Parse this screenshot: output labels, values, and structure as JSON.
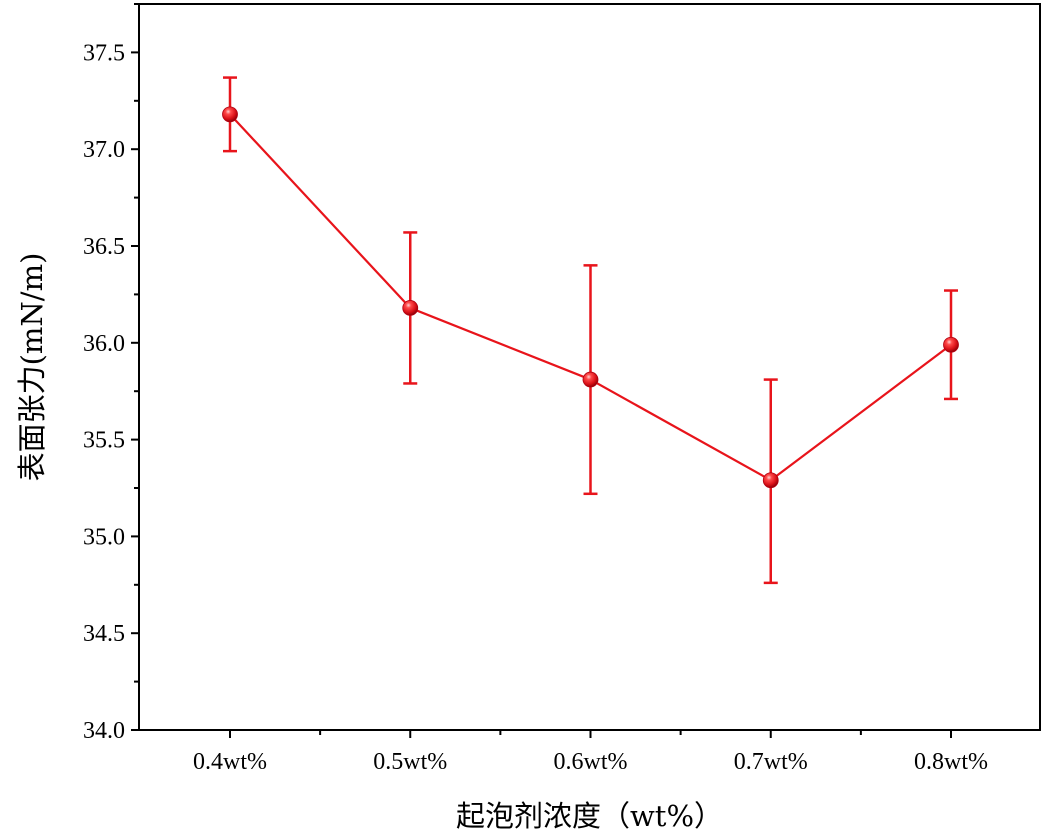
{
  "chart_data": {
    "type": "line",
    "title": "",
    "xlabel": "起泡剂浓度（wt%）",
    "ylabel": "表面张力(mN/m)",
    "categories": [
      "0.4wt%",
      "0.5wt%",
      "0.6wt%",
      "0.7wt%",
      "0.8wt%"
    ],
    "series": [
      {
        "name": "表面张力",
        "values": [
          37.18,
          36.18,
          35.81,
          35.29,
          35.99
        ],
        "error_low": [
          36.99,
          35.79,
          35.22,
          34.76,
          35.71
        ],
        "error_high": [
          37.37,
          36.57,
          36.4,
          35.81,
          36.27
        ],
        "color": "#e8141b"
      }
    ],
    "ylim": [
      34.0,
      37.75
    ],
    "yticks": [
      34.0,
      34.5,
      35.0,
      35.5,
      36.0,
      36.5,
      37.0,
      37.5
    ],
    "ytick_labels": [
      "34.0",
      "34.5",
      "35.0",
      "35.5",
      "36.0",
      "36.5",
      "37.0",
      "37.5"
    ],
    "minor_ytick_step": 0.25,
    "grid": false,
    "legend": "none"
  },
  "colors": {
    "series": "#e8141b",
    "axis": "#000000"
  }
}
